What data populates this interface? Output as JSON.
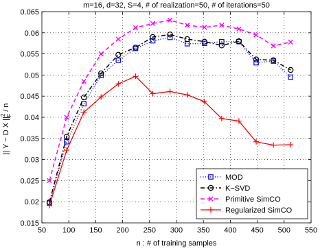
{
  "chart_data": {
    "type": "line",
    "title": "m=16, d=32, S=4, # of realization=50, # of iterations=50",
    "xlabel": "n : # of training samples",
    "ylabel_main": "|| Y − D X ||",
    "ylabel_sup": "2",
    "ylabel_sub": "F",
    "ylabel_tail": " / n",
    "xlim": [
      50,
      550
    ],
    "ylim": [
      0.015,
      0.065
    ],
    "xticks": [
      50,
      100,
      150,
      200,
      250,
      300,
      350,
      400,
      450,
      500,
      550
    ],
    "yticks": [
      0.015,
      0.02,
      0.025,
      0.03,
      0.035,
      0.04,
      0.045,
      0.05,
      0.055,
      0.06,
      0.065
    ],
    "xtick_labels": [
      "50",
      "100",
      "150",
      "200",
      "250",
      "300",
      "350",
      "400",
      "450",
      "500",
      "550"
    ],
    "ytick_labels": [
      "0.015",
      "0.02",
      "0.025",
      "0.03",
      "0.035",
      "0.04",
      "0.045",
      "0.05",
      "0.055",
      "0.06",
      "0.065"
    ],
    "grid": true,
    "legend_position": "lower-right",
    "x": [
      64,
      96,
      128,
      160,
      192,
      224,
      256,
      288,
      320,
      352,
      384,
      416,
      448,
      480,
      512
    ],
    "series": [
      {
        "name": "MOD",
        "color": "#0000ff",
        "line": "dotted",
        "marker": "square",
        "values": [
          0.0197,
          0.0342,
          0.0432,
          0.0499,
          0.0535,
          0.0563,
          0.0581,
          0.0589,
          0.0574,
          0.0575,
          0.0579,
          0.0579,
          0.0529,
          0.0533,
          0.0495
        ]
      },
      {
        "name": "K−SVD",
        "color": "#000000",
        "line": "dashdot",
        "marker": "circle",
        "values": [
          0.0199,
          0.0354,
          0.0447,
          0.0504,
          0.0548,
          0.0565,
          0.059,
          0.0596,
          0.0585,
          0.0579,
          0.057,
          0.058,
          0.0537,
          0.0535,
          0.0512
        ]
      },
      {
        "name": "Primitive SimCO",
        "color": "#ff00ff",
        "line": "dashed",
        "marker": "x",
        "values": [
          0.025,
          0.04,
          0.0485,
          0.055,
          0.0585,
          0.0612,
          0.0622,
          0.063,
          0.0618,
          0.0613,
          0.0618,
          0.0609,
          0.0595,
          0.0569,
          0.0578
        ]
      },
      {
        "name": "Regularized SimCO",
        "color": "#ff0000",
        "line": "solid",
        "marker": "plus",
        "values": [
          0.0191,
          0.0322,
          0.0412,
          0.0448,
          0.0479,
          0.0497,
          0.0456,
          0.0461,
          0.0453,
          0.0437,
          0.0397,
          0.0391,
          0.0342,
          0.0334,
          0.0335
        ]
      }
    ]
  }
}
